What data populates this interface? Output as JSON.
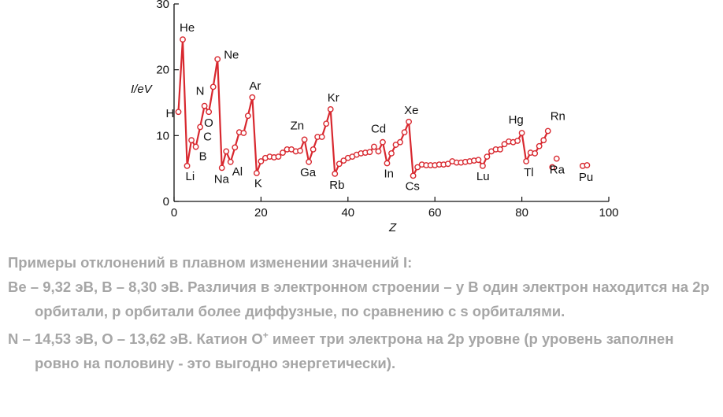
{
  "chart_data": {
    "type": "line",
    "ylabel": "I/eV",
    "xlabel": "Z",
    "xlim": [
      0,
      100
    ],
    "ylim": [
      0,
      30
    ],
    "xticks": [
      0,
      20,
      40,
      60,
      80,
      100
    ],
    "yticks": [
      0,
      10,
      20,
      30
    ],
    "grid": false,
    "color": "#d8282f",
    "series": [
      {
        "x": [
          1,
          2,
          3,
          4,
          5,
          6,
          7,
          8,
          9,
          10,
          11,
          12,
          13,
          14,
          15,
          16,
          17,
          18,
          19,
          20,
          21,
          22,
          23,
          24,
          25,
          26,
          27,
          28,
          29,
          30,
          31,
          32,
          33,
          34,
          35,
          36,
          37,
          38,
          39,
          40,
          41,
          42,
          43,
          44,
          45,
          46,
          47,
          48,
          49,
          50,
          51,
          52,
          53,
          54,
          55,
          56,
          57,
          58,
          59,
          60,
          61,
          62,
          63,
          64,
          65,
          66,
          67,
          68,
          69,
          70,
          71,
          72,
          73,
          74,
          75,
          76,
          77,
          78,
          79,
          80,
          81,
          82,
          83,
          84,
          85,
          86
        ],
        "y": [
          13.6,
          24.6,
          5.4,
          9.3,
          8.3,
          11.3,
          14.5,
          13.6,
          17.4,
          21.6,
          5.1,
          7.6,
          6.0,
          8.2,
          10.5,
          10.4,
          13.0,
          15.8,
          4.3,
          6.1,
          6.6,
          6.8,
          6.7,
          6.8,
          7.4,
          7.9,
          7.9,
          7.6,
          7.7,
          9.4,
          6.0,
          7.9,
          9.8,
          9.8,
          11.8,
          14.0,
          4.2,
          5.7,
          6.2,
          6.6,
          6.8,
          7.1,
          7.3,
          7.4,
          7.5,
          8.3,
          7.6,
          9.0,
          5.8,
          7.3,
          8.6,
          9.0,
          10.5,
          12.1,
          3.9,
          5.2,
          5.6,
          5.5,
          5.5,
          5.5,
          5.6,
          5.6,
          5.7,
          6.1,
          5.9,
          5.9,
          6.0,
          6.1,
          6.2,
          6.3,
          5.4,
          6.8,
          7.6,
          7.9,
          7.9,
          8.7,
          9.1,
          9.0,
          9.2,
          10.4,
          6.1,
          7.4,
          7.3,
          8.4,
          9.3,
          10.7
        ]
      },
      {
        "x": [
          87,
          88
        ],
        "y": [
          5.2,
          6.5
        ]
      },
      {
        "x": [
          94,
          95
        ],
        "y": [
          5.4,
          5.5
        ]
      }
    ],
    "annotations": [
      {
        "text": "H",
        "x": 1,
        "y": 13.6
      },
      {
        "text": "He",
        "x": 2,
        "y": 24.6
      },
      {
        "text": "Li",
        "x": 3,
        "y": 5.4
      },
      {
        "text": "B",
        "x": 5,
        "y": 8.3
      },
      {
        "text": "C",
        "x": 6,
        "y": 11.3
      },
      {
        "text": "N",
        "x": 7,
        "y": 14.5
      },
      {
        "text": "O",
        "x": 8,
        "y": 13.6
      },
      {
        "text": "Ne",
        "x": 10,
        "y": 21.6
      },
      {
        "text": "Na",
        "x": 11,
        "y": 5.1
      },
      {
        "text": "Al",
        "x": 13,
        "y": 6.0
      },
      {
        "text": "Ar",
        "x": 18,
        "y": 15.8
      },
      {
        "text": "K",
        "x": 19,
        "y": 4.3
      },
      {
        "text": "Zn",
        "x": 30,
        "y": 9.4
      },
      {
        "text": "Ga",
        "x": 31,
        "y": 6.0
      },
      {
        "text": "Kr",
        "x": 36,
        "y": 14.0
      },
      {
        "text": "Rb",
        "x": 37,
        "y": 4.2
      },
      {
        "text": "Cd",
        "x": 48,
        "y": 9.0
      },
      {
        "text": "In",
        "x": 49,
        "y": 5.8
      },
      {
        "text": "Xe",
        "x": 54,
        "y": 12.1
      },
      {
        "text": "Cs",
        "x": 55,
        "y": 3.9
      },
      {
        "text": "Lu",
        "x": 71,
        "y": 5.4
      },
      {
        "text": "Hg",
        "x": 80,
        "y": 10.4
      },
      {
        "text": "Tl",
        "x": 81,
        "y": 6.1
      },
      {
        "text": "Rn",
        "x": 86,
        "y": 10.7
      },
      {
        "text": "Ra",
        "x": 88,
        "y": 6.5
      },
      {
        "text": "Pu",
        "x": 94,
        "y": 5.4
      }
    ]
  },
  "notes": {
    "title": "Примеры отклонений в плавном изменении значений I:",
    "para1": "Be – 9,32 эВ, B – 8,30 эВ. Различия в электронном строении – у B один электрон находится на 2р орбитали, р орбитали более диффузные, по сравнению с s орбиталями.",
    "para2_start": "N – 14,53 эВ, O – 13,62 эВ. Катион O",
    "para2_sup": "+",
    "para2_end": " имеет три электрона на 2р уровне (р уровень заполнен ровно на половину - это выгодно энергетически).",
    "color": "#a6a6a6"
  }
}
